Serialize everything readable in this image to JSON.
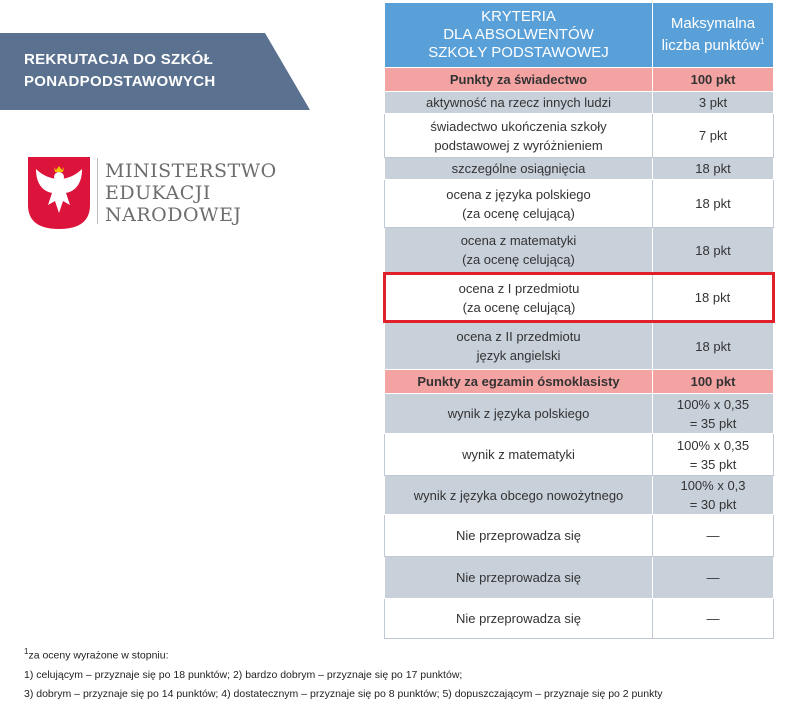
{
  "banner": {
    "lines": [
      "REKRUTACJA DO SZKÓŁ",
      "PONADPODSTAWOWYCH"
    ]
  },
  "logo": {
    "lines": [
      "MINISTERSTWO",
      "EDUKACJI",
      "NARODOWEJ"
    ]
  },
  "table": {
    "header": [
      "KRYTERIA\nDLA ABSOLWENTÓW\nSZKOŁY PODSTAWOWEJ",
      "Maksymalna\nliczba punktów"
    ],
    "header_sup": "1",
    "rows": [
      {
        "cells": [
          "Punkty za świadectwo",
          "100 pkt"
        ],
        "section": true
      },
      {
        "cells": [
          "aktywność na rzecz innych ludzi",
          "3 pkt"
        ]
      },
      {
        "cells": [
          "świadectwo ukończenia szkoły\npodstawowej z wyróżnieniem",
          "7 pkt"
        ]
      },
      {
        "cells": [
          "szczególne osiągnięcia",
          "18 pkt"
        ]
      },
      {
        "cells": [
          "ocena z języka polskiego\n(za ocenę celującą)",
          "18 pkt"
        ]
      },
      {
        "cells": [
          "ocena z matematyki\n(za ocenę celującą)",
          "18 pkt"
        ]
      },
      {
        "cells": [
          "ocena z I przedmiotu\n(za ocenę celującą)",
          "18 pkt"
        ],
        "highlighted": true
      },
      {
        "cells": [
          "ocena z II przedmiotu\njęzyk angielski",
          "18 pkt"
        ]
      },
      {
        "cells": [
          "Punkty za egzamin ósmoklasisty",
          "100 pkt"
        ],
        "section": true
      },
      {
        "cells": [
          "wynik z języka polskiego",
          "100% x 0,35\n= 35 pkt"
        ]
      },
      {
        "cells": [
          "wynik z matematyki",
          "100% x 0,35\n= 35 pkt"
        ]
      },
      {
        "cells": [
          "wynik z języka obcego nowożytnego",
          "100% x 0,3\n= 30 pkt"
        ]
      },
      {
        "cells": [
          "Nie przeprowadza się",
          "—"
        ]
      },
      {
        "cells": [
          "Nie przeprowadza się",
          "—"
        ]
      },
      {
        "cells": [
          "Nie przeprowadza się",
          "—"
        ]
      }
    ]
  },
  "footnotes": {
    "sup": "1",
    "lines": [
      "za oceny wyrażone w stopniu:",
      "1) celującym – przyznaje się po 18 punktów; 2) bardzo dobrym – przyznaje się po 17 punktów;",
      "3) dobrym – przyznaje się po 14 punktów; 4) dostatecznym – przyznaje się po 8 punktów; 5) dopuszczającym – przyznaje się po 2 punkty"
    ]
  }
}
